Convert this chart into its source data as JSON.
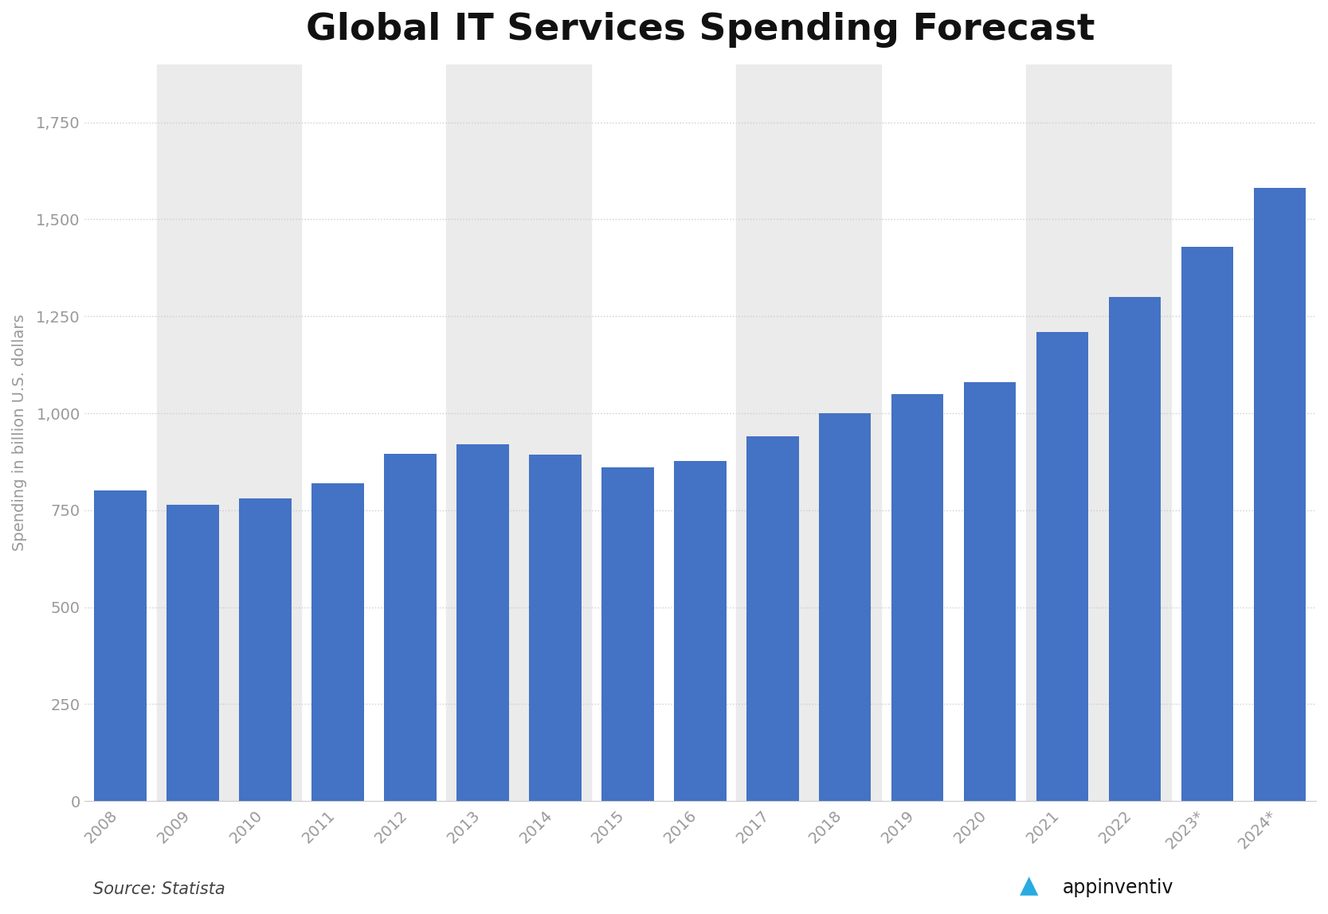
{
  "title": "Global IT Services Spending Forecast",
  "ylabel": "Spending in billion U.S. dollars",
  "source_text": "Source: Statista",
  "bar_color": "#4472c4",
  "background_color": "#ffffff",
  "plot_bg_color": "#ffffff",
  "categories": [
    "2008",
    "2009",
    "2010",
    "2011",
    "2012",
    "2013",
    "2014",
    "2015",
    "2016",
    "2017",
    "2018",
    "2019",
    "2020",
    "2021",
    "2022",
    "2023*",
    "2024*"
  ],
  "values": [
    800,
    763,
    781,
    820,
    896,
    920,
    893,
    861,
    876,
    940,
    1000,
    1050,
    1080,
    1210,
    1300,
    1430,
    1580
  ],
  "stripe_indices": [
    1,
    2,
    5,
    6,
    9,
    10,
    13,
    14
  ],
  "ylim": [
    0,
    1900
  ],
  "yticks": [
    0,
    250,
    500,
    750,
    1000,
    1250,
    1500,
    1750
  ],
  "ytick_labels": [
    "0",
    "250",
    "500",
    "750",
    "1,000",
    "1,250",
    "1,500",
    "1,750"
  ],
  "title_fontsize": 34,
  "ylabel_fontsize": 14,
  "tick_fontsize": 14,
  "source_fontsize": 15,
  "appinventiv_color": "#111111",
  "appinventiv_a_color": "#29abe2",
  "stripe_color": "#ebebeb"
}
